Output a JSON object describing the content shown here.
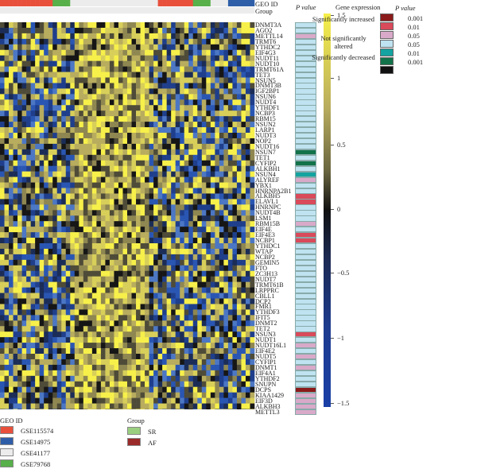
{
  "header": {
    "geo_id_label": "GEO ID",
    "group_label": "Group",
    "p_value_label": "P value",
    "gene_expression_label": "Gene expression"
  },
  "genes": [
    "DNMT3A",
    "AGO2",
    "METTL14",
    "TRMT6",
    "YTHDC2",
    "EIF4G3",
    "NUDT11",
    "NUDT10",
    "TRMT61A",
    "TET3",
    "NSUN5",
    "DNMT3B",
    "IGF2BP1",
    "NSUN6",
    "NUDT4",
    "YTHDF1",
    "NCBP3",
    "RBM15",
    "NSUN2",
    "LARP1",
    "NUDT3",
    "NOP2",
    "NUDT16",
    "NSUN7",
    "TET1",
    "CYFIP2",
    "ALKBH1",
    "NSUN4",
    "ALYREF",
    "YBX1",
    "HNRNPA2B1",
    "ALKBH5",
    "ELAVL1",
    "HNRNPC",
    "NUDT4B",
    "LSM1",
    "RBM15B",
    "EIF4E",
    "EIF4E3",
    "NCBP1",
    "YTHDC1",
    "WTAP",
    "NCBP2",
    "GEMIN5",
    "FTO",
    "ZC3H13",
    "NUDT7",
    "TRMT61B",
    "LRPPRC",
    "CBLL1",
    "DCP2",
    "FMR1",
    "YTHDF3",
    "IFIT5",
    "DNMT2",
    "TET2",
    "NSUN3",
    "NUDT1",
    "NUDT16L1",
    "EIF4E2",
    "NUDT5",
    "CYFIP1",
    "DNMT1",
    "EIF4A1",
    "YTHDF2",
    "SNUPN",
    "DCPS",
    "KIAA1429",
    "EIF3D",
    "ALKBH3",
    "METTL3"
  ],
  "pvalues": [
    "ns",
    "ns",
    "inc05",
    "ns",
    "ns",
    "ns",
    "ns",
    "ns",
    "ns",
    "ns",
    "ns",
    "ns",
    "ns",
    "ns",
    "ns",
    "ns",
    "ns",
    "ns",
    "ns",
    "ns",
    "ns",
    "ns",
    "ns",
    "dec001",
    "ns",
    "dec001",
    "ns",
    "dec05",
    "inc05",
    "ns",
    "ns",
    "inc01",
    "inc01",
    "ns",
    "ns",
    "ns",
    "inc05",
    "ns",
    "inc01",
    "inc01",
    "ns",
    "ns",
    "ns",
    "ns",
    "ns",
    "ns",
    "ns",
    "ns",
    "ns",
    "ns",
    "ns",
    "ns",
    "ns",
    "ns",
    "ns",
    "ns",
    "inc01",
    "ns",
    "inc05",
    "ns",
    "inc05",
    "ns",
    "inc05",
    "ns",
    "ns",
    "ns",
    "inc001",
    "inc05",
    "inc05",
    "inc05",
    "inc05"
  ],
  "colorbar": {
    "ticks": [
      "1.5",
      "1",
      "0.5",
      "0",
      "−0.5",
      "−1",
      "−1.5"
    ]
  },
  "p_legend": {
    "title": "P value",
    "increased_label": "Significantly increased",
    "not_altered_label": "Not significantly altered",
    "decreased_label": "Significantly decreased",
    "values": [
      "0.001",
      "0.01",
      "0.05",
      "0.05",
      "0.01",
      "0.001"
    ],
    "colors": [
      "#8b1a1a",
      "#d94a5a",
      "#d9a9c9",
      "#bfe3f0",
      "#14a3a0",
      "#12734a",
      "#111111"
    ]
  },
  "geo_legend": {
    "title": "GEO ID",
    "items": [
      {
        "label": "GSE115574",
        "color": "#e8503c"
      },
      {
        "label": "GSE14975",
        "color": "#2f5ea8"
      },
      {
        "label": "GSE41177",
        "color": "#ececec"
      },
      {
        "label": "GSE79768",
        "color": "#58b04a"
      }
    ]
  },
  "group_legend": {
    "title": "Group",
    "items": [
      {
        "label": "SR",
        "color": "#9bcf80"
      },
      {
        "label": "AF",
        "color": "#9b2a2a"
      }
    ]
  },
  "colors": {
    "high": "#f7f04a",
    "mid_high": "#b8ac5e",
    "zero": "#111111",
    "low": "#1a3fa6"
  }
}
